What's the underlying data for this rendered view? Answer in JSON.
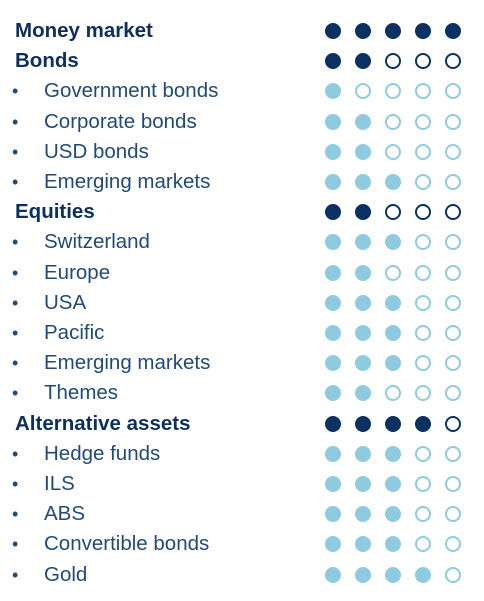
{
  "scale_max": 5,
  "bullet_glyph": "•",
  "colors": {
    "category_dot": "#0a3161",
    "sub_dot": "#8fcbe0",
    "category_text": "#0c2f5e",
    "sub_text": "#1f4a7a"
  },
  "rows": [
    {
      "label": "Money market",
      "type": "category",
      "rating": 5
    },
    {
      "label": "Bonds",
      "type": "category",
      "rating": 2
    },
    {
      "label": "Government bonds",
      "type": "sub",
      "rating": 1
    },
    {
      "label": "Corporate bonds",
      "type": "sub",
      "rating": 2
    },
    {
      "label": "USD bonds",
      "type": "sub",
      "rating": 2
    },
    {
      "label": "Emerging markets",
      "type": "sub",
      "rating": 3
    },
    {
      "label": "Equities",
      "type": "category",
      "rating": 2
    },
    {
      "label": "Switzerland",
      "type": "sub",
      "rating": 3
    },
    {
      "label": "Europe",
      "type": "sub",
      "rating": 2
    },
    {
      "label": "USA",
      "type": "sub",
      "rating": 3
    },
    {
      "label": "Pacific",
      "type": "sub",
      "rating": 3
    },
    {
      "label": "Emerging markets",
      "type": "sub",
      "rating": 3
    },
    {
      "label": "Themes",
      "type": "sub",
      "rating": 2
    },
    {
      "label": "Alternative assets",
      "type": "category",
      "rating": 4
    },
    {
      "label": "Hedge funds",
      "type": "sub",
      "rating": 3
    },
    {
      "label": "ILS",
      "type": "sub",
      "rating": 3
    },
    {
      "label": "ABS",
      "type": "sub",
      "rating": 3
    },
    {
      "label": "Convertible bonds",
      "type": "sub",
      "rating": 3
    },
    {
      "label": "Gold",
      "type": "sub",
      "rating": 4
    }
  ]
}
